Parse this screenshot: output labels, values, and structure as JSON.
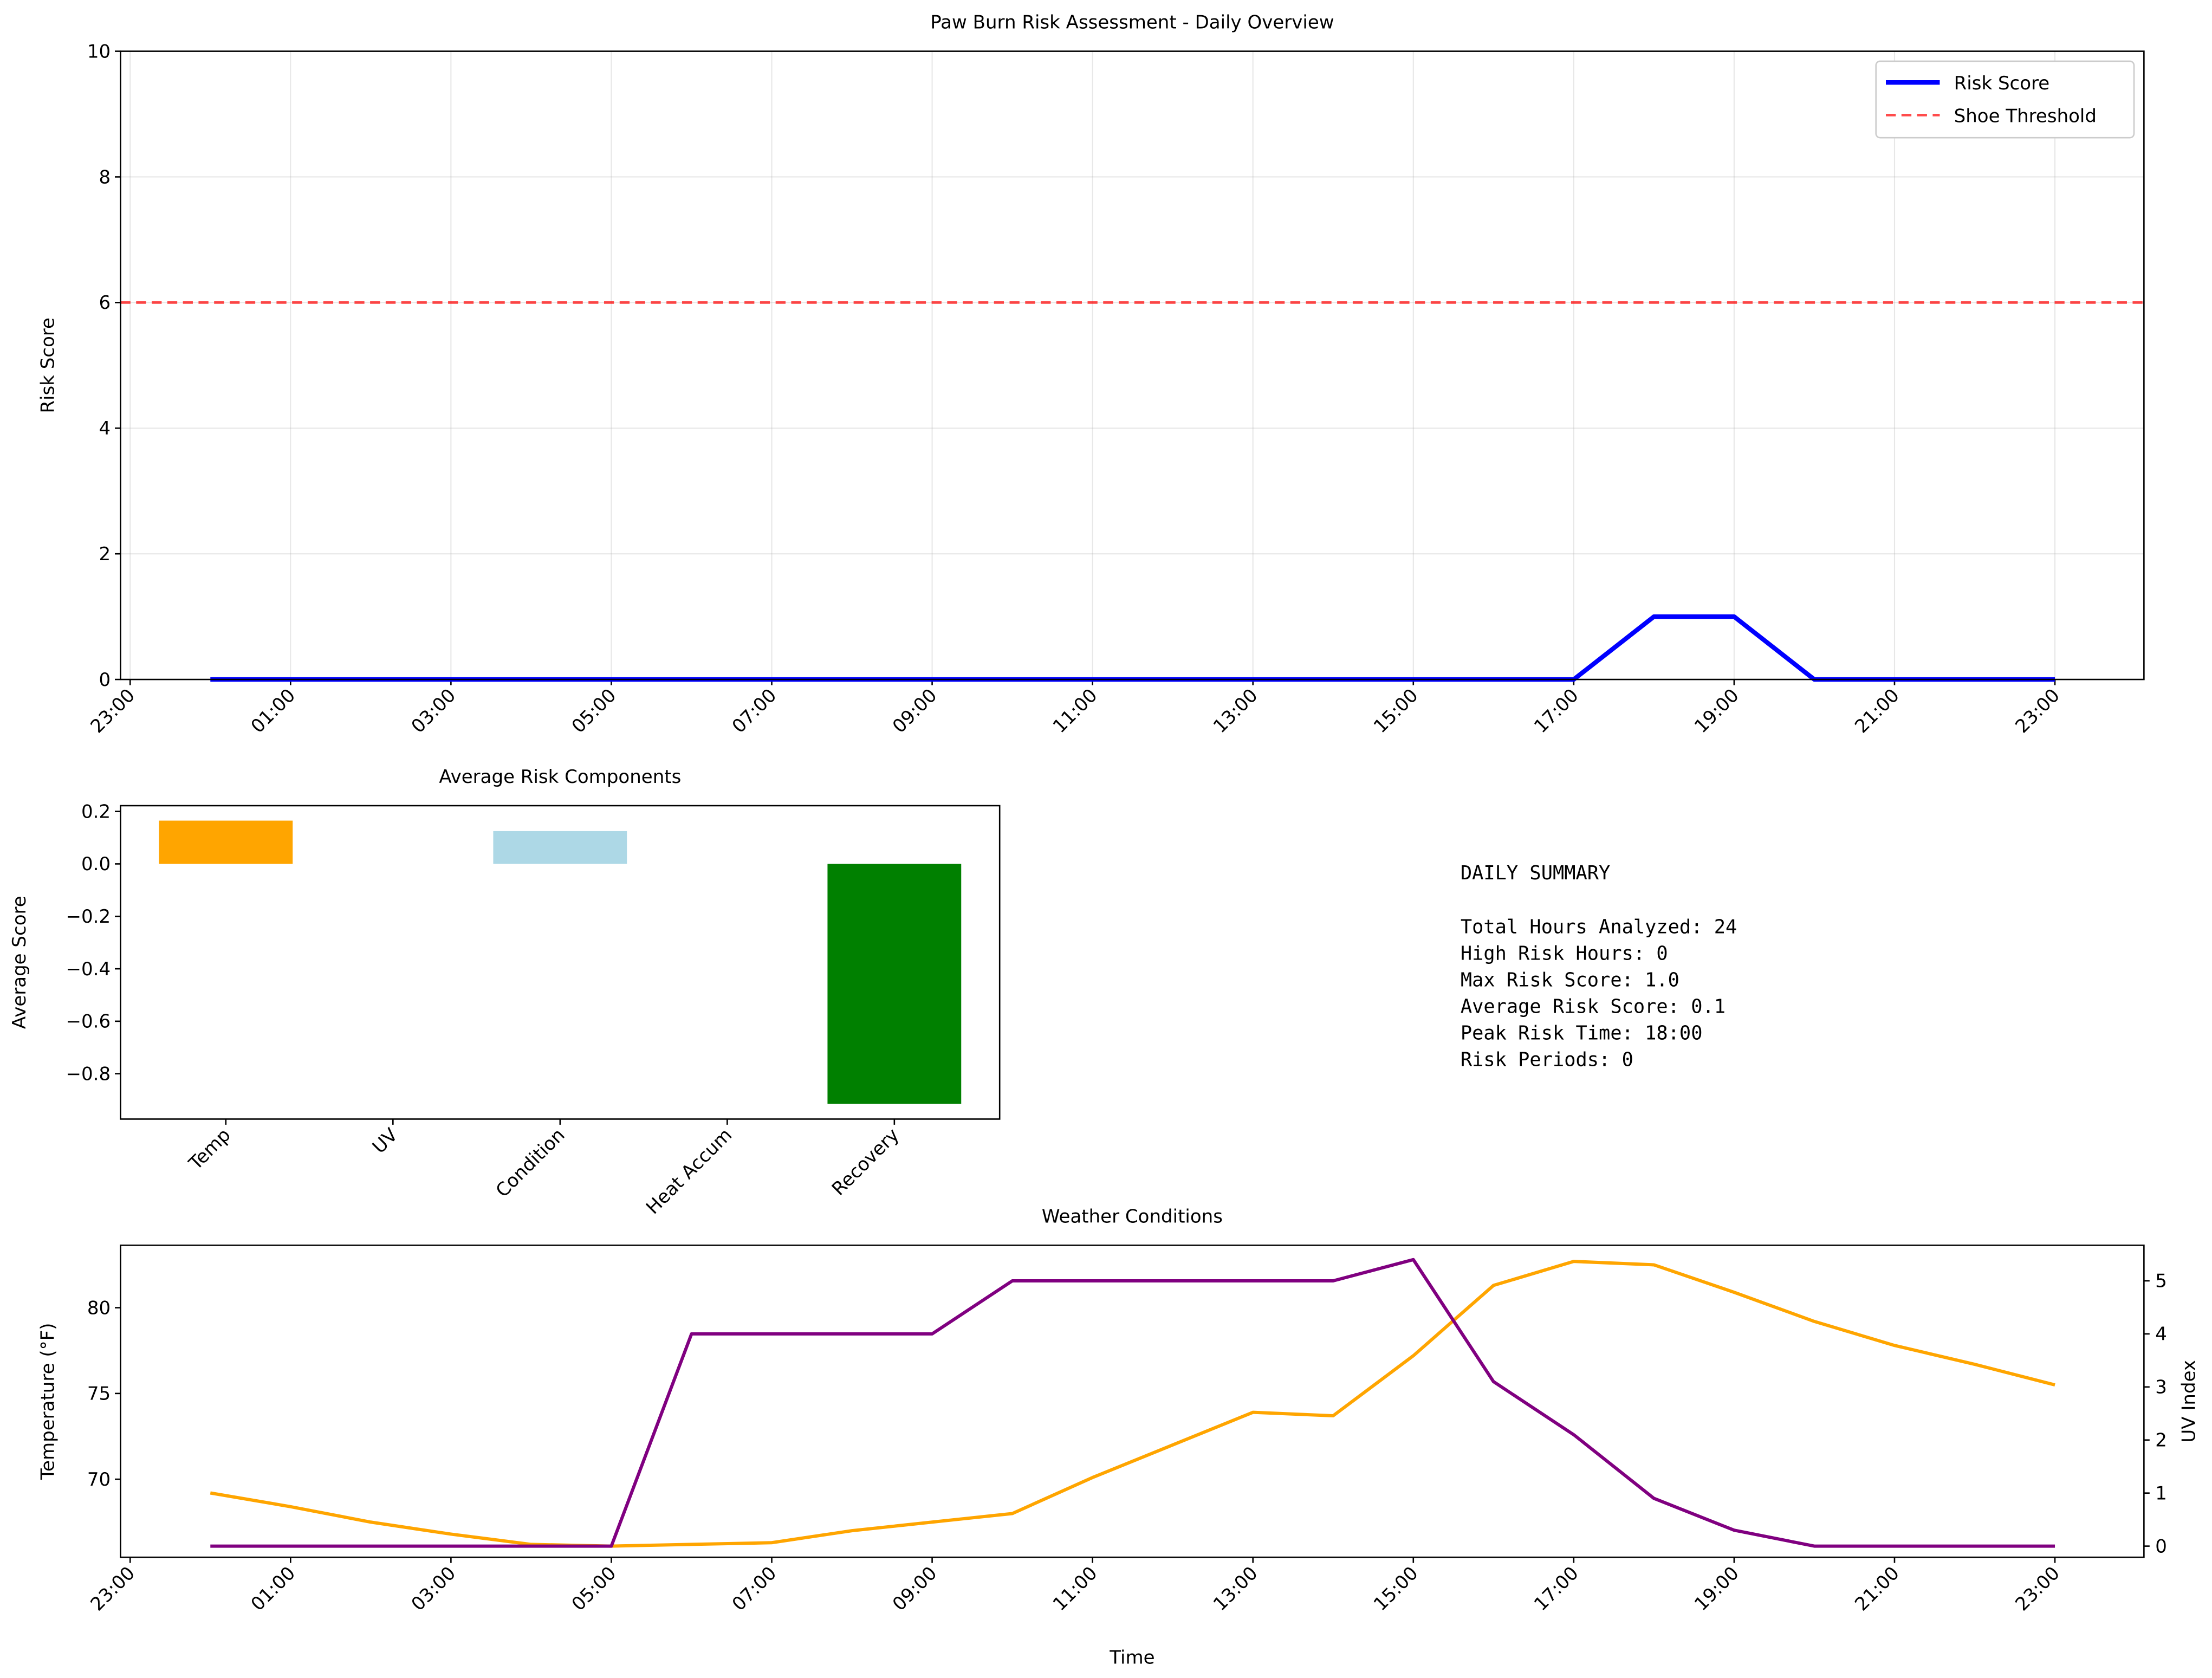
{
  "chart_data": [
    {
      "type": "line",
      "title": "Paw Burn Risk Assessment - Daily Overview",
      "ylabel": "Risk Score",
      "x": [
        0,
        1,
        2,
        3,
        4,
        5,
        6,
        7,
        8,
        9,
        10,
        11,
        12,
        13,
        14,
        15,
        16,
        17,
        18,
        19,
        20,
        21,
        22,
        23
      ],
      "xlim": [
        -1.12,
        24.11
      ],
      "xticks": [
        {
          "value": -1,
          "label": "23:00"
        },
        {
          "value": 1,
          "label": "01:00"
        },
        {
          "value": 3,
          "label": "03:00"
        },
        {
          "value": 5,
          "label": "05:00"
        },
        {
          "value": 7,
          "label": "07:00"
        },
        {
          "value": 9,
          "label": "09:00"
        },
        {
          "value": 11,
          "label": "11:00"
        },
        {
          "value": 13,
          "label": "13:00"
        },
        {
          "value": 15,
          "label": "15:00"
        },
        {
          "value": 17,
          "label": "17:00"
        },
        {
          "value": 19,
          "label": "19:00"
        },
        {
          "value": 21,
          "label": "21:00"
        },
        {
          "value": 23,
          "label": "23:00"
        }
      ],
      "ylim": [
        0,
        10
      ],
      "yticks": [
        0,
        2,
        4,
        6,
        8,
        10
      ],
      "grid": true,
      "legend": "upper right",
      "series": [
        {
          "name": "Risk Score",
          "color": "blue",
          "values": [
            0,
            0,
            0,
            0,
            0,
            0,
            0,
            0,
            0,
            0,
            0,
            0,
            0,
            0,
            0,
            0,
            0,
            0,
            1,
            1,
            0,
            0,
            0,
            0
          ]
        }
      ],
      "threshold": {
        "name": "Shoe Threshold",
        "value": 6,
        "color": "red"
      }
    },
    {
      "type": "bar",
      "title": "Average Risk Components",
      "ylabel": "Average Score",
      "categories": [
        "Temp",
        "UV",
        "Condition",
        "Heat Accum",
        "Recovery"
      ],
      "values": [
        0.165,
        0,
        0.125,
        0,
        -0.915
      ],
      "colors": [
        "orange",
        "purple",
        "lightblue",
        "red",
        "green"
      ],
      "ylim": [
        -0.973,
        0.222
      ],
      "yticks": [
        {
          "value": 0.2,
          "label": "0.2"
        },
        {
          "value": 0,
          "label": "0.0"
        },
        {
          "value": -0.2,
          "label": "−0.2"
        },
        {
          "value": -0.4,
          "label": "−0.4"
        },
        {
          "value": -0.6,
          "label": "−0.6"
        },
        {
          "value": -0.8,
          "label": "−0.8"
        }
      ],
      "grid": false
    },
    {
      "type": "line",
      "title": "Weather Conditions",
      "xlabel": "Time",
      "ylabel": "Temperature (°F)",
      "y2label": "UV Index",
      "x": [
        0,
        1,
        2,
        3,
        4,
        5,
        6,
        7,
        8,
        9,
        10,
        11,
        12,
        13,
        14,
        15,
        16,
        17,
        18,
        19,
        20,
        21,
        22,
        23
      ],
      "xlim": [
        -1.12,
        24.11
      ],
      "xticks": [
        {
          "value": -1,
          "label": "23:00"
        },
        {
          "value": 1,
          "label": "01:00"
        },
        {
          "value": 3,
          "label": "03:00"
        },
        {
          "value": 5,
          "label": "05:00"
        },
        {
          "value": 7,
          "label": "07:00"
        },
        {
          "value": 9,
          "label": "09:00"
        },
        {
          "value": 11,
          "label": "11:00"
        },
        {
          "value": 13,
          "label": "13:00"
        },
        {
          "value": 15,
          "label": "15:00"
        },
        {
          "value": 17,
          "label": "17:00"
        },
        {
          "value": 19,
          "label": "19:00"
        },
        {
          "value": 21,
          "label": "21:00"
        },
        {
          "value": 23,
          "label": "23:00"
        }
      ],
      "ylim": [
        65.45,
        83.64
      ],
      "yticks": [
        70,
        75,
        80
      ],
      "y2lim": [
        -0.21,
        5.67
      ],
      "y2ticks": [
        0,
        1,
        2,
        3,
        4,
        5
      ],
      "grid": false,
      "series": [
        {
          "name": "Temperature (°F)",
          "color": "orange",
          "values": [
            69.2,
            68.4,
            67.5,
            66.8,
            66.2,
            66.1,
            66.2,
            66.3,
            67.0,
            67.5,
            68.0,
            70.1,
            72.0,
            73.9,
            73.7,
            77.2,
            81.3,
            82.7,
            82.5,
            80.9,
            79.2,
            77.8,
            76.7,
            75.5
          ]
        },
        {
          "name": "UV Index",
          "color": "purple",
          "axis": "y2",
          "values": [
            0,
            0,
            0,
            0,
            0,
            0,
            4,
            4,
            4,
            4,
            5,
            5,
            5,
            5,
            5,
            5.4,
            3.1,
            2.1,
            0.9,
            0.3,
            0,
            0,
            0,
            0
          ]
        }
      ]
    }
  ],
  "summary": {
    "title": "DAILY SUMMARY",
    "lines": [
      "Total Hours Analyzed: 24",
      "High Risk Hours: 0",
      "Max Risk Score: 1.0",
      "Average Risk Score: 0.1",
      "Peak Risk Time: 18:00",
      "Risk Periods: 0"
    ]
  }
}
